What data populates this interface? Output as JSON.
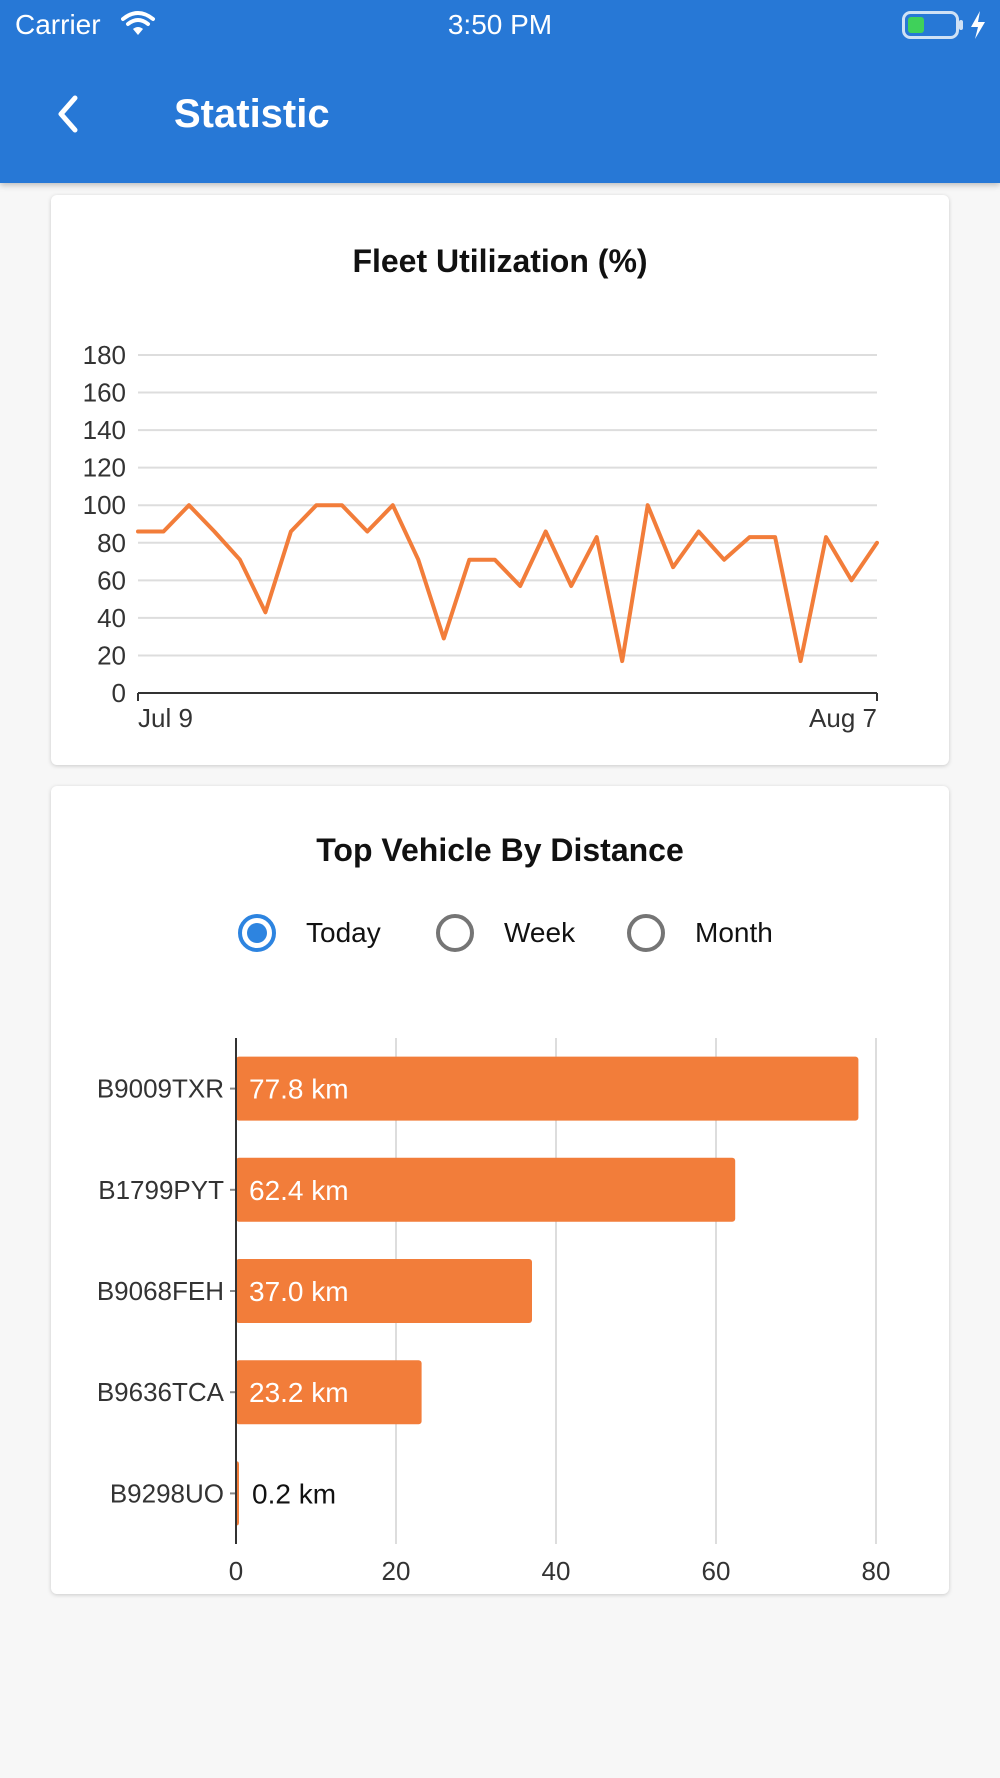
{
  "status_bar": {
    "carrier": "Carrier",
    "time": "3:50 PM"
  },
  "header": {
    "title": "Statistic",
    "back_icon": "chevron-left-icon"
  },
  "colors": {
    "appbar": "#2778d6",
    "series": "#f27d3a",
    "radio_active": "#2d84e0"
  },
  "utilization_card": {
    "title": "Fleet Utilization (%)"
  },
  "distance_card": {
    "title": "Top Vehicle By Distance",
    "options": [
      {
        "label": "Today",
        "selected": true
      },
      {
        "label": "Week",
        "selected": false
      },
      {
        "label": "Month",
        "selected": false
      }
    ]
  },
  "chart_data": [
    {
      "type": "line",
      "title": "Fleet Utilization (%)",
      "x_start_label": "Jul 9",
      "x_end_label": "Aug 7",
      "ylim": [
        0,
        180
      ],
      "yticks": [
        0,
        20,
        40,
        60,
        80,
        100,
        120,
        140,
        160,
        180
      ],
      "grid": true,
      "values": [
        86,
        86,
        100,
        86,
        71,
        43,
        86,
        100,
        100,
        86,
        100,
        71,
        29,
        71,
        71,
        57,
        86,
        57,
        83,
        17,
        100,
        67,
        86,
        71,
        83,
        83,
        17,
        83,
        60,
        80
      ]
    },
    {
      "type": "bar",
      "orientation": "horizontal",
      "title": "Top Vehicle By Distance",
      "categories": [
        "B9009TXR",
        "B1799PYT",
        "B9068FEH",
        "B9636TCA",
        "B9298UO"
      ],
      "values": [
        77.8,
        62.4,
        37.0,
        23.2,
        0.2
      ],
      "data_labels": [
        "77.8 km",
        "62.4 km",
        "37.0 km",
        "23.2 km",
        "0.2 km"
      ],
      "xlim": [
        0,
        80
      ],
      "xticks": [
        0,
        20,
        40,
        60,
        80
      ],
      "grid": true
    }
  ]
}
